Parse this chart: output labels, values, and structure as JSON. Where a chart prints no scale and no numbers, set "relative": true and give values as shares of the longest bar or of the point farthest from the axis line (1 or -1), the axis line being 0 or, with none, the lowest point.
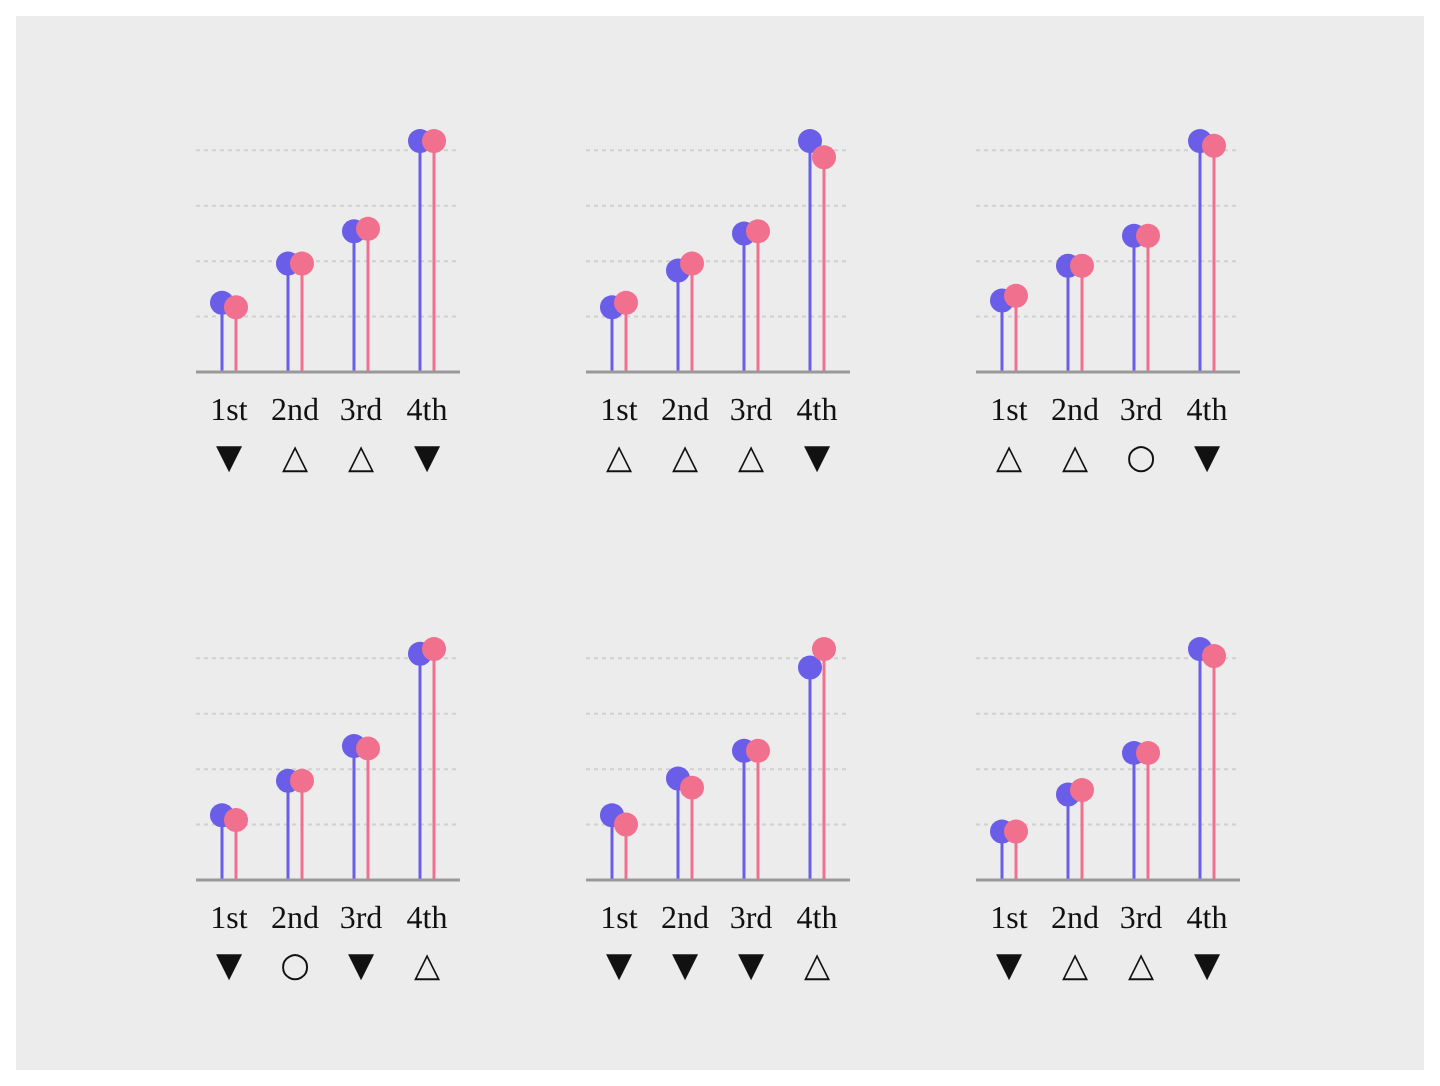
{
  "chart_data": [
    {
      "type": "lollipop",
      "relative": true,
      "grid": "y",
      "marker": "circle",
      "categories": [
        "1st",
        "2nd",
        "3rd",
        "4th"
      ],
      "series": [
        {
          "color": "#6a5ee8",
          "values": [
            0.3,
            0.47,
            0.61,
            1
          ]
        },
        {
          "color": "#f0708e",
          "values": [
            0.28,
            0.47,
            0.62,
            1
          ]
        }
      ],
      "annotations": [
        "▼",
        "△",
        "△",
        "▼"
      ]
    },
    {
      "type": "lollipop",
      "relative": true,
      "grid": "y",
      "marker": "circle",
      "categories": [
        "1st",
        "2nd",
        "3rd",
        "4th"
      ],
      "series": [
        {
          "color": "#6a5ee8",
          "values": [
            0.28,
            0.44,
            0.6,
            1
          ]
        },
        {
          "color": "#f0708e",
          "values": [
            0.3,
            0.47,
            0.61,
            0.93
          ]
        }
      ],
      "annotations": [
        "△",
        "△",
        "△",
        "▼"
      ]
    },
    {
      "type": "lollipop",
      "relative": true,
      "grid": "y",
      "marker": "circle",
      "categories": [
        "1st",
        "2nd",
        "3rd",
        "4th"
      ],
      "series": [
        {
          "color": "#6a5ee8",
          "values": [
            0.31,
            0.46,
            0.59,
            1
          ]
        },
        {
          "color": "#f0708e",
          "values": [
            0.33,
            0.46,
            0.59,
            0.98
          ]
        }
      ],
      "annotations": [
        "△",
        "△",
        "○",
        "▼"
      ]
    },
    {
      "type": "lollipop",
      "relative": true,
      "grid": "y",
      "marker": "circle",
      "categories": [
        "1st",
        "2nd",
        "3rd",
        "4th"
      ],
      "series": [
        {
          "color": "#6a5ee8",
          "values": [
            0.28,
            0.43,
            0.58,
            0.98
          ]
        },
        {
          "color": "#f0708e",
          "values": [
            0.26,
            0.43,
            0.57,
            1
          ]
        }
      ],
      "annotations": [
        "▼",
        "○",
        "▼",
        "△"
      ]
    },
    {
      "type": "lollipop",
      "relative": true,
      "grid": "y",
      "marker": "circle",
      "categories": [
        "1st",
        "2nd",
        "3rd",
        "4th"
      ],
      "series": [
        {
          "color": "#6a5ee8",
          "values": [
            0.28,
            0.44,
            0.56,
            0.92
          ]
        },
        {
          "color": "#f0708e",
          "values": [
            0.24,
            0.4,
            0.56,
            1
          ]
        }
      ],
      "annotations": [
        "▼",
        "▼",
        "▼",
        "△"
      ]
    },
    {
      "type": "lollipop",
      "relative": true,
      "grid": "y",
      "marker": "circle",
      "categories": [
        "1st",
        "2nd",
        "3rd",
        "4th"
      ],
      "series": [
        {
          "color": "#6a5ee8",
          "values": [
            0.21,
            0.37,
            0.55,
            1
          ]
        },
        {
          "color": "#f0708e",
          "values": [
            0.21,
            0.39,
            0.55,
            0.97
          ]
        }
      ],
      "annotations": [
        "▼",
        "△",
        "△",
        "▼"
      ]
    }
  ]
}
